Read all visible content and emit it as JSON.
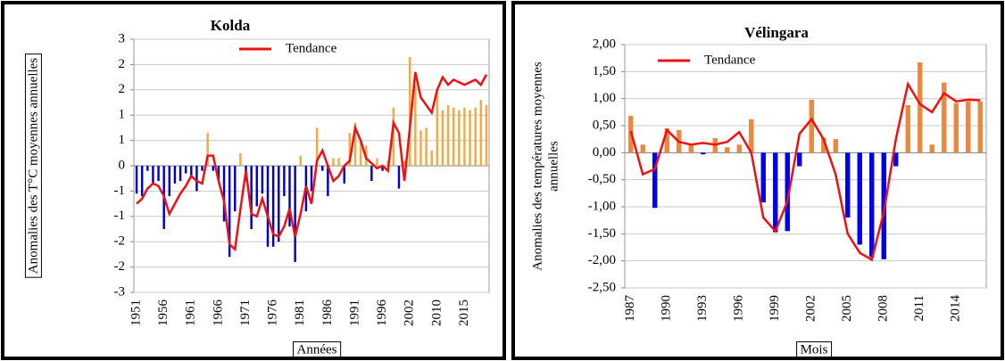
{
  "chart_data": [
    {
      "type": "bar",
      "title": "Kolda",
      "ylabel": "Anomalies des T°C moyennes annuelles",
      "xlabel": "Années",
      "categories": [
        "1951",
        null,
        null,
        null,
        null,
        "1956",
        null,
        null,
        null,
        null,
        "1961",
        null,
        null,
        null,
        null,
        "1966",
        null,
        null,
        null,
        null,
        "1971",
        null,
        null,
        null,
        null,
        "1976",
        null,
        null,
        null,
        null,
        "1981",
        null,
        null,
        null,
        null,
        "1986",
        null,
        null,
        null,
        null,
        "1991",
        null,
        null,
        null,
        null,
        "1996",
        null,
        null,
        null,
        null,
        "2002",
        null,
        null,
        null,
        null,
        "2010",
        null,
        null,
        null,
        null,
        "2015",
        null,
        null,
        null,
        null
      ],
      "series": [
        {
          "positive_color": "#f5a840",
          "negative_color": "#0000cc",
          "values": [
            -0.55,
            -0.6,
            -0.1,
            -0.35,
            -0.3,
            -1.25,
            -0.6,
            -0.35,
            -0.3,
            -0.15,
            -0.25,
            -0.5,
            -0.1,
            0.65,
            -0.1,
            -0.3,
            -1.1,
            -1.8,
            -0.9,
            0.25,
            -0.3,
            -1.25,
            -0.8,
            -0.55,
            -1.6,
            -1.6,
            -1.5,
            -0.6,
            -1.2,
            -1.9,
            0.2,
            -0.9,
            -0.5,
            0.75,
            -0.1,
            -0.6,
            0.15,
            0.15,
            -0.35,
            0.65,
            0.85,
            0.5,
            0.4,
            -0.3,
            0.15,
            -0.1,
            0.1,
            1.15,
            -0.45,
            0.1,
            2.15,
            1.6,
            0.7,
            0.75,
            0.3,
            1.45,
            1.1,
            1.2,
            1.15,
            1.1,
            1.15,
            1.1,
            1.15,
            1.3,
            1.2
          ]
        },
        {
          "type": "line",
          "name": "Tendance",
          "color": "#ee1111",
          "values": [
            -0.75,
            -0.65,
            -0.45,
            -0.35,
            -0.4,
            -0.6,
            -0.95,
            -0.75,
            -0.55,
            -0.4,
            -0.2,
            -0.3,
            -0.35,
            0.2,
            0.2,
            -0.3,
            -0.7,
            -1.55,
            -1.65,
            -0.85,
            -0.1,
            -0.95,
            -1.0,
            -0.65,
            -1.0,
            -1.35,
            -1.4,
            -1.2,
            -0.85,
            -1.4,
            -0.95,
            -0.4,
            -0.75,
            0.1,
            0.3,
            0.0,
            -0.3,
            -0.2,
            0.0,
            0.1,
            0.75,
            0.5,
            0.15,
            0.05,
            -0.05,
            0.0,
            -0.1,
            0.85,
            0.65,
            -0.3,
            0.75,
            1.85,
            1.35,
            1.2,
            1.05,
            1.5,
            1.75,
            1.6,
            1.7,
            1.65,
            1.6,
            1.65,
            1.7,
            1.6,
            1.8
          ]
        }
      ],
      "ylim": [
        -2.5,
        2.5
      ],
      "yticks": [
        {
          "value": 2.5,
          "label": "3"
        },
        {
          "value": 2,
          "label": "2"
        },
        {
          "value": 1.5,
          "label": "2"
        },
        {
          "value": 1,
          "label": "1"
        },
        {
          "value": 0.5,
          "label": "1"
        },
        {
          "value": 0,
          "label": "0"
        },
        {
          "value": -0.5,
          "label": "-1"
        },
        {
          "value": -1,
          "label": "-1"
        },
        {
          "value": -1.5,
          "label": "-2"
        },
        {
          "value": -2,
          "label": "-2"
        },
        {
          "value": -2.5,
          "label": "-3"
        }
      ],
      "grid": true
    },
    {
      "type": "bar",
      "title": "Vélingara",
      "ylabel": [
        "Anomalies des températures moyennes",
        "annuelles"
      ],
      "xlabel": "Mois",
      "categories": [
        "1987",
        null,
        null,
        "1990",
        null,
        null,
        "1993",
        null,
        null,
        "1996",
        null,
        null,
        "1999",
        null,
        null,
        "2002",
        null,
        null,
        "2005",
        null,
        null,
        "2008",
        null,
        null,
        "2011",
        null,
        null,
        "2014",
        null,
        null
      ],
      "series": [
        {
          "positive_color": "#e8893f",
          "negative_color": "#0000ee",
          "values": [
            0.68,
            0.15,
            -1.02,
            0.45,
            0.42,
            0.15,
            -0.03,
            0.27,
            0.1,
            0.15,
            0.62,
            -0.92,
            -1.47,
            -1.45,
            -0.25,
            0.98,
            0.28,
            0.25,
            -1.2,
            -1.7,
            -1.93,
            -1.97,
            -0.25,
            0.88,
            1.67,
            0.15,
            1.3,
            0.92,
            0.95,
            0.95
          ]
        },
        {
          "type": "line",
          "name": "Tendance",
          "color": "#ee1111",
          "values": [
            0.4,
            -0.4,
            -0.3,
            0.42,
            0.2,
            0.15,
            0.18,
            0.15,
            0.2,
            0.38,
            0.0,
            -1.2,
            -1.45,
            -0.9,
            0.35,
            0.62,
            0.25,
            -0.4,
            -1.5,
            -1.85,
            -1.98,
            -1.1,
            0.25,
            1.27,
            0.9,
            0.75,
            1.1,
            0.95,
            0.98,
            0.97
          ]
        }
      ],
      "ylim": [
        -2.5,
        2
      ],
      "yticks": [
        {
          "value": 2,
          "label": "2,00"
        },
        {
          "value": 1.5,
          "label": "1,50"
        },
        {
          "value": 1,
          "label": "1,00"
        },
        {
          "value": 0.5,
          "label": "0,50"
        },
        {
          "value": 0,
          "label": "0,00"
        },
        {
          "value": -0.5,
          "label": "-0,50"
        },
        {
          "value": -1,
          "label": "-1,00"
        },
        {
          "value": -1.5,
          "label": "-1,50"
        },
        {
          "value": -2,
          "label": "-2,00"
        },
        {
          "value": -2.5,
          "label": "-2,50"
        }
      ],
      "grid": true
    }
  ]
}
